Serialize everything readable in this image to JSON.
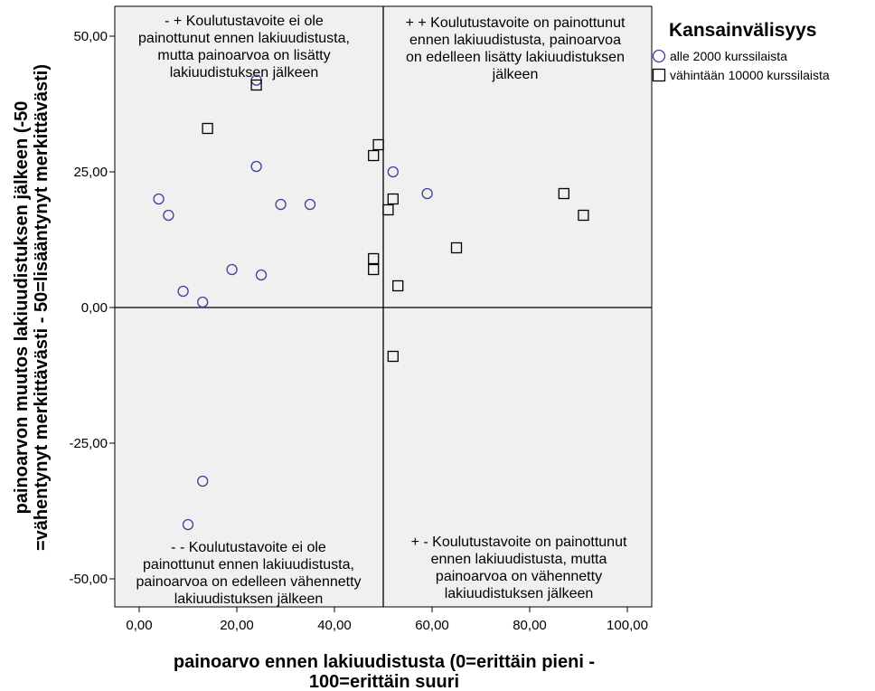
{
  "chart_data": {
    "type": "scatter",
    "xlabel": [
      "painoarvo ennen lakiuudistusta (0=erittäin pieni -",
      "100=erittäin suuri"
    ],
    "ylabel": [
      "painoarvon muutos lakiuudistuksen jälkeen (-50",
      "=vähentynyt merkittävästi - 50=lisääntynyt merkittävästi)"
    ],
    "xlim": [
      -5,
      105
    ],
    "ylim": [
      -55,
      56
    ],
    "x_ticks": [
      0,
      20,
      40,
      60,
      80,
      100
    ],
    "x_tick_labels": [
      "0,00",
      "20,00",
      "40,00",
      "60,00",
      "80,00",
      "100,00"
    ],
    "y_ticks": [
      50,
      25,
      0,
      -25,
      -50
    ],
    "y_tick_labels": [
      "50,00",
      "25,00",
      "0,00",
      "-25,00",
      "-50,00"
    ],
    "reference_lines": {
      "x": 50,
      "y": 0
    },
    "quadrant_labels": {
      "top_left": [
        "- + Koulutustavoite ei ole",
        "painottunut ennen lakiuudistusta,",
        "mutta painoarvoa on lisätty",
        "lakiuudistuksen jälkeen"
      ],
      "top_right": [
        "+ + Koulutustavoite on painottunut",
        "ennen lakiuudistusta, painoarvoa",
        "on edelleen lisätty lakiuudistuksen",
        "jälkeen"
      ],
      "bottom_left": [
        "- - Koulutustavoite ei ole",
        "painottunut ennen lakiuudistusta,",
        "painoarvoa on edelleen vähennetty",
        "lakiuudistuksen jälkeen"
      ],
      "bottom_right": [
        "+ - Koulutustavoite on painottunut",
        "ennen lakiuudistusta, mutta",
        "painoarvoa on vähennetty",
        "lakiuudistuksen jälkeen"
      ]
    },
    "legend": {
      "title": "Kansainvälisyys",
      "placement": "top-right"
    },
    "grid": false,
    "plot_background": "#f0f0f0",
    "series": [
      {
        "name": "alle 2000 kurssilaista",
        "marker": "circle",
        "color": "#3a3fa0",
        "points": [
          [
            24,
            41.9
          ],
          [
            4,
            20
          ],
          [
            6,
            17
          ],
          [
            24,
            26
          ],
          [
            29,
            19
          ],
          [
            35,
            19
          ],
          [
            19,
            7
          ],
          [
            25,
            6
          ],
          [
            9,
            3
          ],
          [
            13,
            1
          ],
          [
            13,
            -32
          ],
          [
            10,
            -40
          ],
          [
            52,
            25
          ],
          [
            59,
            21
          ]
        ]
      },
      {
        "name": "vähintään 10000 kurssilaista",
        "marker": "square",
        "color": "#000000",
        "points": [
          [
            24,
            41
          ],
          [
            14,
            33
          ],
          [
            49,
            30
          ],
          [
            48,
            28
          ],
          [
            52,
            20
          ],
          [
            51,
            18
          ],
          [
            87,
            21
          ],
          [
            91,
            17
          ],
          [
            65,
            11
          ],
          [
            48,
            9
          ],
          [
            48,
            7
          ],
          [
            53,
            4
          ],
          [
            52,
            -9
          ]
        ]
      }
    ]
  }
}
